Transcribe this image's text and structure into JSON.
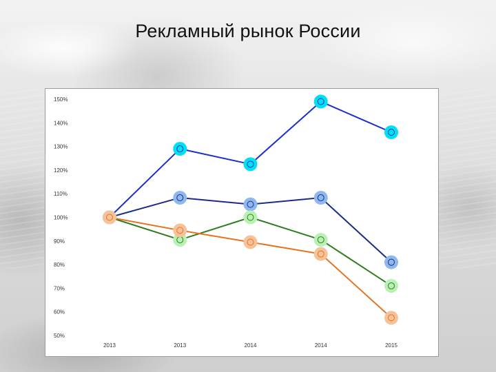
{
  "slide": {
    "title": "Рекламный рынок России"
  },
  "chart_data": {
    "type": "line",
    "title": "",
    "xlabel": "",
    "ylabel": "",
    "categories": [
      "2013",
      "2013",
      "2014",
      "2014",
      "2015"
    ],
    "y_ticks": [
      "150%",
      "140%",
      "130%",
      "120%",
      "110%",
      "100%",
      "90%",
      "80%",
      "70%",
      "60%",
      "50%"
    ],
    "ylim": [
      50,
      150
    ],
    "grid": false,
    "legend": "none",
    "series": [
      {
        "values": [
          100,
          129,
          122.5,
          149,
          136
        ],
        "line_color": "#1a2fcc",
        "marker_color": "#00e0f0"
      },
      {
        "values": [
          100,
          108.3,
          105.5,
          108.3,
          81
        ],
        "line_color": "#1c2a8a",
        "marker_color": "#8fb8ec"
      },
      {
        "values": [
          100,
          90.5,
          100,
          90.5,
          71
        ],
        "line_color": "#2e7d1f",
        "marker_color": "#b9f0b4"
      },
      {
        "values": [
          100,
          94.5,
          89.5,
          84.5,
          57.5
        ],
        "line_color": "#e57320",
        "marker_color": "#f6c29a"
      }
    ]
  }
}
